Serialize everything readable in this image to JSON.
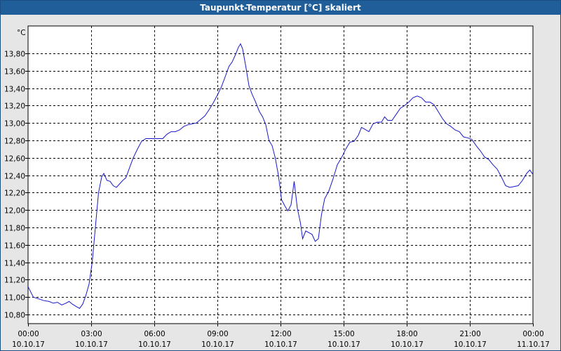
{
  "window": {
    "title": "Taupunkt-Temperatur [°C] skaliert"
  },
  "colors": {
    "title_bg": "#1f5e99",
    "line": "#1818c8",
    "plot_bg": "#ffffff",
    "grid": "#000000"
  },
  "chart_data": {
    "type": "line",
    "title": "Taupunkt-Temperatur [°C] skaliert",
    "ylabel": "°C",
    "xlabel": "",
    "ylim": [
      10.7,
      14.0
    ],
    "xlim": [
      0,
      24
    ],
    "x_unit": "hours since 10.10.17 00:00",
    "grid": true,
    "x_ticks": [
      {
        "value": 0,
        "time": "00:00",
        "date": "10.10.17"
      },
      {
        "value": 3,
        "time": "03:00",
        "date": "10.10.17"
      },
      {
        "value": 6,
        "time": "06:00",
        "date": "10.10.17"
      },
      {
        "value": 9,
        "time": "09:00",
        "date": "10.10.17"
      },
      {
        "value": 12,
        "time": "12:00",
        "date": "10.10.17"
      },
      {
        "value": 15,
        "time": "15:00",
        "date": "10.10.17"
      },
      {
        "value": 18,
        "time": "18:00",
        "date": "10.10.17"
      },
      {
        "value": 21,
        "time": "21:00",
        "date": "10.10.17"
      },
      {
        "value": 24,
        "time": "00:00",
        "date": "11.10.17"
      }
    ],
    "y_ticks": [
      {
        "value": 10.8,
        "label": "10,80"
      },
      {
        "value": 11.0,
        "label": "11,00"
      },
      {
        "value": 11.2,
        "label": "11,20"
      },
      {
        "value": 11.4,
        "label": "11,40"
      },
      {
        "value": 11.6,
        "label": "11,60"
      },
      {
        "value": 11.8,
        "label": "11,80"
      },
      {
        "value": 12.0,
        "label": "12,00"
      },
      {
        "value": 12.2,
        "label": "12,20"
      },
      {
        "value": 12.4,
        "label": "12,40"
      },
      {
        "value": 12.6,
        "label": "12,60"
      },
      {
        "value": 12.8,
        "label": "12,80"
      },
      {
        "value": 13.0,
        "label": "13,00"
      },
      {
        "value": 13.2,
        "label": "13,20"
      },
      {
        "value": 13.4,
        "label": "13,40"
      },
      {
        "value": 13.6,
        "label": "13,60"
      },
      {
        "value": 13.8,
        "label": "13,80"
      }
    ],
    "series": [
      {
        "points": [
          [
            0.0,
            11.12
          ],
          [
            0.25,
            11.0
          ],
          [
            0.5,
            10.98
          ],
          [
            0.75,
            10.96
          ],
          [
            1.0,
            10.95
          ],
          [
            1.2,
            10.93
          ],
          [
            1.4,
            10.94
          ],
          [
            1.6,
            10.91
          ],
          [
            1.8,
            10.93
          ],
          [
            1.95,
            10.95
          ],
          [
            2.1,
            10.92
          ],
          [
            2.3,
            10.89
          ],
          [
            2.45,
            10.87
          ],
          [
            2.6,
            10.92
          ],
          [
            2.75,
            11.02
          ],
          [
            2.9,
            11.15
          ],
          [
            3.05,
            11.4
          ],
          [
            3.2,
            11.8
          ],
          [
            3.35,
            12.2
          ],
          [
            3.5,
            12.38
          ],
          [
            3.6,
            12.42
          ],
          [
            3.75,
            12.34
          ],
          [
            3.9,
            12.33
          ],
          [
            4.05,
            12.28
          ],
          [
            4.2,
            12.26
          ],
          [
            4.35,
            12.3
          ],
          [
            4.5,
            12.34
          ],
          [
            4.65,
            12.37
          ],
          [
            4.8,
            12.47
          ],
          [
            5.0,
            12.6
          ],
          [
            5.2,
            12.7
          ],
          [
            5.4,
            12.79
          ],
          [
            5.6,
            12.82
          ],
          [
            5.8,
            12.82
          ],
          [
            6.0,
            12.82
          ],
          [
            6.2,
            12.82
          ],
          [
            6.4,
            12.82
          ],
          [
            6.6,
            12.87
          ],
          [
            6.8,
            12.9
          ],
          [
            7.0,
            12.9
          ],
          [
            7.2,
            12.92
          ],
          [
            7.4,
            12.96
          ],
          [
            7.6,
            12.98
          ],
          [
            7.8,
            12.99
          ],
          [
            8.0,
            13.0
          ],
          [
            8.2,
            13.04
          ],
          [
            8.4,
            13.08
          ],
          [
            8.6,
            13.15
          ],
          [
            8.8,
            13.23
          ],
          [
            9.0,
            13.32
          ],
          [
            9.2,
            13.42
          ],
          [
            9.4,
            13.55
          ],
          [
            9.55,
            13.65
          ],
          [
            9.7,
            13.7
          ],
          [
            9.85,
            13.78
          ],
          [
            10.0,
            13.87
          ],
          [
            10.1,
            13.91
          ],
          [
            10.2,
            13.85
          ],
          [
            10.35,
            13.65
          ],
          [
            10.5,
            13.43
          ],
          [
            10.65,
            13.33
          ],
          [
            10.8,
            13.25
          ],
          [
            11.0,
            13.13
          ],
          [
            11.15,
            13.07
          ],
          [
            11.3,
            12.98
          ],
          [
            11.45,
            12.8
          ],
          [
            11.6,
            12.74
          ],
          [
            11.75,
            12.6
          ],
          [
            11.9,
            12.4
          ],
          [
            12.05,
            12.12
          ],
          [
            12.2,
            12.05
          ],
          [
            12.35,
            11.99
          ],
          [
            12.5,
            12.06
          ],
          [
            12.65,
            12.33
          ],
          [
            12.8,
            12.02
          ],
          [
            12.95,
            11.85
          ],
          [
            13.05,
            11.67
          ],
          [
            13.2,
            11.76
          ],
          [
            13.35,
            11.74
          ],
          [
            13.5,
            11.72
          ],
          [
            13.65,
            11.64
          ],
          [
            13.8,
            11.67
          ],
          [
            13.95,
            11.95
          ],
          [
            14.1,
            12.13
          ],
          [
            14.3,
            12.22
          ],
          [
            14.5,
            12.36
          ],
          [
            14.7,
            12.52
          ],
          [
            14.9,
            12.6
          ],
          [
            15.1,
            12.7
          ],
          [
            15.3,
            12.78
          ],
          [
            15.5,
            12.79
          ],
          [
            15.7,
            12.86
          ],
          [
            15.85,
            12.95
          ],
          [
            16.0,
            12.93
          ],
          [
            16.2,
            12.9
          ],
          [
            16.4,
            12.99
          ],
          [
            16.6,
            13.01
          ],
          [
            16.8,
            13.01
          ],
          [
            16.95,
            13.07
          ],
          [
            17.1,
            13.03
          ],
          [
            17.3,
            13.03
          ],
          [
            17.5,
            13.1
          ],
          [
            17.7,
            13.17
          ],
          [
            17.9,
            13.2
          ],
          [
            18.1,
            13.24
          ],
          [
            18.3,
            13.29
          ],
          [
            18.5,
            13.31
          ],
          [
            18.7,
            13.29
          ],
          [
            18.9,
            13.24
          ],
          [
            19.1,
            13.24
          ],
          [
            19.3,
            13.21
          ],
          [
            19.5,
            13.13
          ],
          [
            19.7,
            13.05
          ],
          [
            19.9,
            12.99
          ],
          [
            20.1,
            12.96
          ],
          [
            20.3,
            12.92
          ],
          [
            20.5,
            12.9
          ],
          [
            20.7,
            12.84
          ],
          [
            20.9,
            12.83
          ],
          [
            21.1,
            12.81
          ],
          [
            21.3,
            12.74
          ],
          [
            21.5,
            12.68
          ],
          [
            21.7,
            12.61
          ],
          [
            21.9,
            12.58
          ],
          [
            22.1,
            12.52
          ],
          [
            22.3,
            12.47
          ],
          [
            22.5,
            12.38
          ],
          [
            22.7,
            12.28
          ],
          [
            22.9,
            12.26
          ],
          [
            23.1,
            12.27
          ],
          [
            23.3,
            12.28
          ],
          [
            23.5,
            12.34
          ],
          [
            23.7,
            12.42
          ],
          [
            23.85,
            12.46
          ],
          [
            24.0,
            12.41
          ]
        ]
      }
    ]
  }
}
